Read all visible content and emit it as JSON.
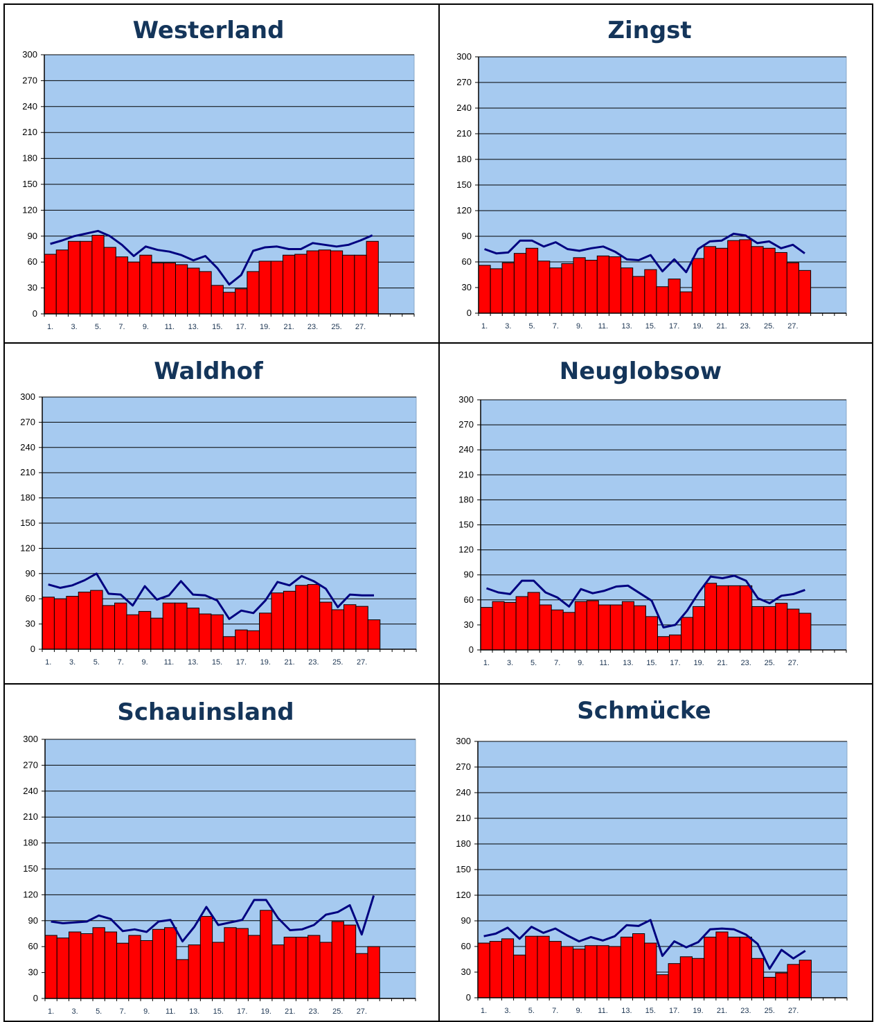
{
  "chart_data": [
    {
      "type": "bar",
      "title": "Westerland",
      "ylim": [
        0,
        300
      ],
      "yticks": [
        0,
        30,
        60,
        90,
        120,
        150,
        180,
        210,
        240,
        270,
        300
      ],
      "x_tick_labels": [
        "1.",
        "3.",
        "5.",
        "7.",
        "9.",
        "11.",
        "13.",
        "15.",
        "17.",
        "19.",
        "21.",
        "23.",
        "25.",
        "27."
      ],
      "x_positions": 31,
      "grid": true,
      "colors": {
        "bars": "#ff0000",
        "line": "#000080",
        "plot_bg": "#a6caf0"
      },
      "series": [
        {
          "type": "bar",
          "values": [
            69,
            74,
            84,
            84,
            91,
            77,
            66,
            60,
            68,
            59,
            59,
            57,
            53,
            49,
            33,
            25,
            29,
            49,
            61,
            61,
            68,
            69,
            73,
            74,
            73,
            68,
            68,
            84
          ]
        },
        {
          "type": "line",
          "values": [
            81,
            85,
            90,
            93,
            96,
            90,
            80,
            67,
            78,
            74,
            72,
            68,
            62,
            67,
            53,
            34,
            45,
            73,
            77,
            78,
            75,
            75,
            82,
            80,
            78,
            80,
            85,
            91
          ]
        }
      ]
    },
    {
      "type": "bar",
      "title": "Zingst",
      "ylim": [
        0,
        300
      ],
      "yticks": [
        0,
        30,
        60,
        90,
        120,
        150,
        180,
        210,
        240,
        270,
        300
      ],
      "x_tick_labels": [
        "1.",
        "3.",
        "5.",
        "7.",
        "9.",
        "11.",
        "13.",
        "15.",
        "17.",
        "19.",
        "21.",
        "23.",
        "25.",
        "27."
      ],
      "x_positions": 31,
      "grid": true,
      "colors": {
        "bars": "#ff0000",
        "line": "#000080",
        "plot_bg": "#a6caf0"
      },
      "series": [
        {
          "type": "bar",
          "values": [
            56,
            52,
            59,
            70,
            76,
            61,
            53,
            58,
            65,
            62,
            67,
            66,
            53,
            43,
            51,
            31,
            40,
            25,
            64,
            78,
            76,
            85,
            86,
            78,
            76,
            71,
            59,
            50
          ]
        },
        {
          "type": "line",
          "values": [
            75,
            70,
            71,
            85,
            85,
            78,
            83,
            75,
            73,
            76,
            78,
            72,
            63,
            62,
            68,
            49,
            63,
            48,
            75,
            84,
            85,
            93,
            91,
            82,
            84,
            76,
            80,
            70
          ]
        }
      ]
    },
    {
      "type": "bar",
      "title": "Waldhof",
      "ylim": [
        0,
        300
      ],
      "yticks": [
        0,
        30,
        60,
        90,
        120,
        150,
        180,
        210,
        240,
        270,
        300
      ],
      "x_tick_labels": [
        "1.",
        "3.",
        "5.",
        "7.",
        "9.",
        "11.",
        "13.",
        "15.",
        "17.",
        "19.",
        "21.",
        "23.",
        "25.",
        "27."
      ],
      "x_positions": 31,
      "grid": true,
      "colors": {
        "bars": "#ff0000",
        "line": "#000080",
        "plot_bg": "#a6caf0"
      },
      "series": [
        {
          "type": "bar",
          "values": [
            62,
            60,
            63,
            68,
            70,
            52,
            55,
            41,
            45,
            37,
            55,
            55,
            49,
            42,
            41,
            15,
            23,
            22,
            43,
            67,
            69,
            76,
            77,
            56,
            47,
            53,
            51,
            35
          ]
        },
        {
          "type": "line",
          "values": [
            77,
            73,
            76,
            82,
            90,
            66,
            65,
            52,
            75,
            59,
            64,
            81,
            65,
            64,
            58,
            36,
            46,
            43,
            58,
            80,
            76,
            87,
            81,
            72,
            50,
            65,
            64,
            64
          ]
        }
      ]
    },
    {
      "type": "bar",
      "title": "Neuglobsow",
      "ylim": [
        0,
        300
      ],
      "yticks": [
        0,
        30,
        60,
        90,
        120,
        150,
        180,
        210,
        240,
        270,
        300
      ],
      "x_tick_labels": [
        "1.",
        "3.",
        "5.",
        "7.",
        "9.",
        "11.",
        "13.",
        "15.",
        "17.",
        "19.",
        "21.",
        "23.",
        "25.",
        "27."
      ],
      "x_positions": 31,
      "grid": true,
      "colors": {
        "bars": "#ff0000",
        "line": "#000080",
        "plot_bg": "#a6caf0"
      },
      "series": [
        {
          "type": "bar",
          "values": [
            51,
            58,
            57,
            64,
            69,
            54,
            48,
            45,
            58,
            59,
            54,
            54,
            58,
            53,
            40,
            16,
            18,
            39,
            52,
            80,
            77,
            77,
            77,
            52,
            52,
            56,
            49,
            44
          ]
        },
        {
          "type": "line",
          "values": [
            74,
            69,
            67,
            83,
            83,
            69,
            63,
            52,
            73,
            68,
            71,
            76,
            77,
            68,
            59,
            27,
            30,
            47,
            69,
            88,
            86,
            89,
            83,
            62,
            56,
            65,
            67,
            72
          ]
        }
      ]
    },
    {
      "type": "bar",
      "title": "Schauinsland",
      "ylim": [
        0,
        300
      ],
      "yticks": [
        0,
        30,
        60,
        90,
        120,
        150,
        180,
        210,
        240,
        270,
        300
      ],
      "x_tick_labels": [
        "1.",
        "3.",
        "5.",
        "7.",
        "9.",
        "11.",
        "13.",
        "15.",
        "17.",
        "19.",
        "21.",
        "23.",
        "25.",
        "27."
      ],
      "x_positions": 31,
      "grid": true,
      "colors": {
        "bars": "#ff0000",
        "line": "#000080",
        "plot_bg": "#a6caf0"
      },
      "series": [
        {
          "type": "bar",
          "values": [
            73,
            70,
            77,
            75,
            82,
            77,
            64,
            73,
            67,
            80,
            82,
            45,
            62,
            95,
            65,
            82,
            81,
            73,
            102,
            62,
            71,
            71,
            73,
            65,
            89,
            85,
            52,
            60
          ]
        },
        {
          "type": "line",
          "values": [
            89,
            87,
            88,
            89,
            96,
            92,
            78,
            80,
            77,
            89,
            91,
            66,
            83,
            106,
            85,
            88,
            91,
            114,
            114,
            93,
            79,
            80,
            85,
            97,
            100,
            108,
            74,
            119
          ]
        }
      ]
    },
    {
      "type": "bar",
      "title": "Schmücke",
      "ylim": [
        0,
        300
      ],
      "yticks": [
        0,
        30,
        60,
        90,
        120,
        150,
        180,
        210,
        240,
        270,
        300
      ],
      "x_tick_labels": [
        "1.",
        "3.",
        "5.",
        "7.",
        "9.",
        "11.",
        "13.",
        "15.",
        "17.",
        "19.",
        "21.",
        "23.",
        "25.",
        "27."
      ],
      "x_positions": 31,
      "grid": true,
      "colors": {
        "bars": "#ff0000",
        "line": "#000080",
        "plot_bg": "#a6caf0"
      },
      "series": [
        {
          "type": "bar",
          "values": [
            64,
            66,
            69,
            50,
            72,
            72,
            66,
            60,
            57,
            61,
            61,
            60,
            71,
            75,
            64,
            27,
            40,
            48,
            46,
            71,
            77,
            71,
            71,
            46,
            24,
            29,
            39,
            44
          ]
        },
        {
          "type": "line",
          "values": [
            72,
            75,
            82,
            69,
            83,
            76,
            81,
            73,
            66,
            71,
            67,
            72,
            85,
            84,
            91,
            49,
            66,
            59,
            65,
            80,
            81,
            80,
            74,
            63,
            34,
            56,
            46,
            55
          ]
        }
      ]
    }
  ]
}
